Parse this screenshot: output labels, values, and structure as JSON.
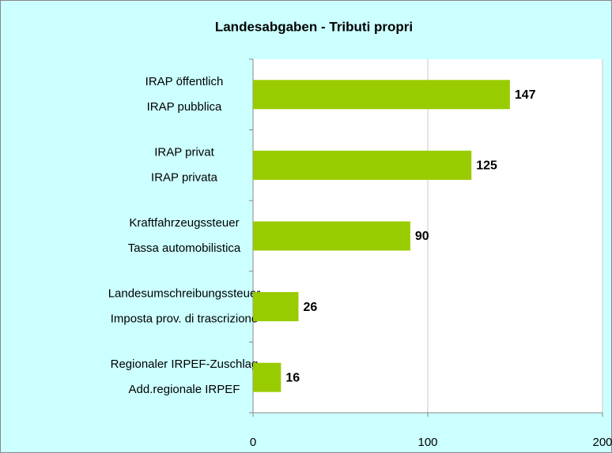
{
  "chart_data": {
    "type": "hbar",
    "title": "Landesabgaben - Tributi propri",
    "categories": [
      [
        "IRAP öffentlich",
        "IRAP pubblica"
      ],
      [
        "IRAP privat",
        "IRAP privata"
      ],
      [
        "Kraftfahrzeugssteuer",
        "Tassa automobilistica"
      ],
      [
        "Landesumschreibungssteuer",
        "Imposta prov. di trascrizione"
      ],
      [
        "Regionaler IRPEF-Zuschlag",
        "Add.regionale IRPEF"
      ]
    ],
    "values": [
      147,
      125,
      90,
      26,
      16
    ],
    "color": "#99cc00",
    "xlim": [
      0,
      200
    ],
    "xticks": [
      0,
      100,
      200
    ],
    "grid": true
  }
}
